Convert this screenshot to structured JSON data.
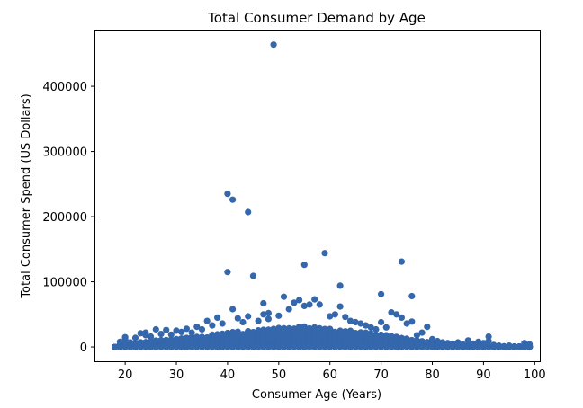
{
  "chart_data": {
    "type": "scatter",
    "title": "Total Consumer Demand by Age",
    "xlabel": "Consumer Age (Years)",
    "ylabel": "Total Consumer Spend (US Dollars)",
    "xlim": [
      14,
      101
    ],
    "ylim": [
      -22000,
      487000
    ],
    "xticks": [
      20,
      30,
      40,
      50,
      60,
      70,
      80,
      90,
      100
    ],
    "yticks": [
      0,
      100000,
      200000,
      300000,
      400000
    ],
    "grid": false,
    "legend": false,
    "marker_color": "#3467ab",
    "series": [
      {
        "points": [
          [
            18,
            0
          ],
          [
            19,
            4000
          ],
          [
            19,
            8000
          ],
          [
            20,
            12000
          ],
          [
            20,
            15000
          ],
          [
            21,
            7000
          ],
          [
            22,
            14000
          ],
          [
            23,
            21000
          ],
          [
            24,
            18000
          ],
          [
            24,
            22000
          ],
          [
            25,
            16000
          ],
          [
            26,
            27000
          ],
          [
            27,
            20000
          ],
          [
            28,
            26000
          ],
          [
            29,
            19000
          ],
          [
            30,
            25000
          ],
          [
            31,
            23000
          ],
          [
            32,
            28000
          ],
          [
            33,
            22000
          ],
          [
            34,
            31000
          ],
          [
            35,
            27000
          ],
          [
            36,
            40000
          ],
          [
            37,
            33000
          ],
          [
            38,
            45000
          ],
          [
            39,
            36000
          ],
          [
            40,
            115000
          ],
          [
            40,
            235000
          ],
          [
            41,
            226000
          ],
          [
            41,
            58000
          ],
          [
            42,
            44000
          ],
          [
            43,
            38000
          ],
          [
            44,
            207000
          ],
          [
            44,
            47000
          ],
          [
            45,
            109000
          ],
          [
            46,
            40000
          ],
          [
            47,
            67000
          ],
          [
            47,
            50000
          ],
          [
            48,
            52000
          ],
          [
            48,
            43000
          ],
          [
            49,
            464000
          ],
          [
            50,
            48000
          ],
          [
            51,
            77000
          ],
          [
            52,
            58000
          ],
          [
            53,
            68000
          ],
          [
            54,
            72000
          ],
          [
            55,
            126000
          ],
          [
            55,
            63000
          ],
          [
            56,
            65000
          ],
          [
            57,
            73000
          ],
          [
            58,
            65000
          ],
          [
            59,
            144000
          ],
          [
            60,
            47000
          ],
          [
            61,
            50000
          ],
          [
            62,
            94000
          ],
          [
            62,
            62000
          ],
          [
            63,
            46000
          ],
          [
            64,
            40000
          ],
          [
            65,
            38000
          ],
          [
            66,
            36000
          ],
          [
            67,
            33000
          ],
          [
            68,
            30000
          ],
          [
            69,
            27000
          ],
          [
            70,
            81000
          ],
          [
            70,
            38000
          ],
          [
            71,
            30000
          ],
          [
            72,
            53000
          ],
          [
            73,
            50000
          ],
          [
            74,
            131000
          ],
          [
            74,
            45000
          ],
          [
            75,
            36000
          ],
          [
            76,
            78000
          ],
          [
            76,
            39000
          ],
          [
            77,
            18000
          ],
          [
            78,
            22000
          ],
          [
            79,
            31000
          ],
          [
            80,
            12000
          ],
          [
            81,
            9000
          ],
          [
            82,
            7000
          ],
          [
            83,
            6000
          ],
          [
            84,
            5000
          ],
          [
            85,
            7000
          ],
          [
            86,
            4000
          ],
          [
            87,
            10000
          ],
          [
            88,
            5000
          ],
          [
            89,
            8000
          ],
          [
            90,
            6000
          ],
          [
            91,
            16000
          ],
          [
            91,
            9000
          ],
          [
            92,
            3000
          ],
          [
            93,
            2000
          ],
          [
            95,
            2000
          ],
          [
            98,
            6000
          ],
          [
            99,
            4000
          ],
          [
            99,
            1000
          ]
        ],
        "dense_band": {
          "description_values": [
            [
              18,
              0
            ],
            [
              20,
              4000
            ],
            [
              25,
              9000
            ],
            [
              30,
              13000
            ],
            [
              35,
              17000
            ],
            [
              40,
              22000
            ],
            [
              45,
              26000
            ],
            [
              50,
              30000
            ],
            [
              55,
              32000
            ],
            [
              60,
              28000
            ],
            [
              65,
              24000
            ],
            [
              70,
              20000
            ],
            [
              75,
              13000
            ],
            [
              80,
              6000
            ],
            [
              85,
              2500
            ],
            [
              90,
              1500
            ],
            [
              95,
              800
            ],
            [
              99,
              500
            ]
          ]
        }
      }
    ]
  }
}
